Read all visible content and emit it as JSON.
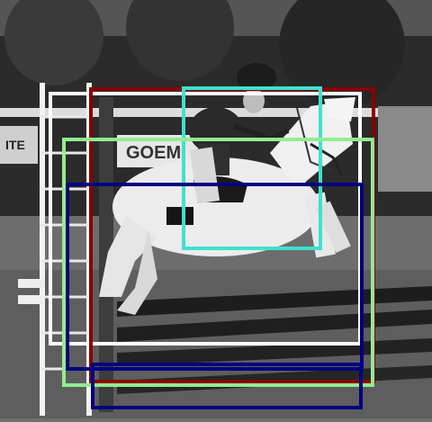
{
  "scene": {
    "description_colors": {
      "sky_trees": "#2a2a2a",
      "grass": "#6c6c6c",
      "horse": "#eeeeee",
      "rider": "#1e1e1e"
    },
    "signs": {
      "left_sign_text": "ITE",
      "banner_text": "GOEM"
    }
  },
  "boxes": [
    {
      "id": "box-white",
      "color": "#ffffff"
    },
    {
      "id": "box-darkred",
      "color": "#8b0000"
    },
    {
      "id": "box-cyan",
      "color": "#40e0d0"
    },
    {
      "id": "box-lightgreen",
      "color": "#90ee90"
    },
    {
      "id": "box-navy",
      "color": "#000080"
    }
  ]
}
